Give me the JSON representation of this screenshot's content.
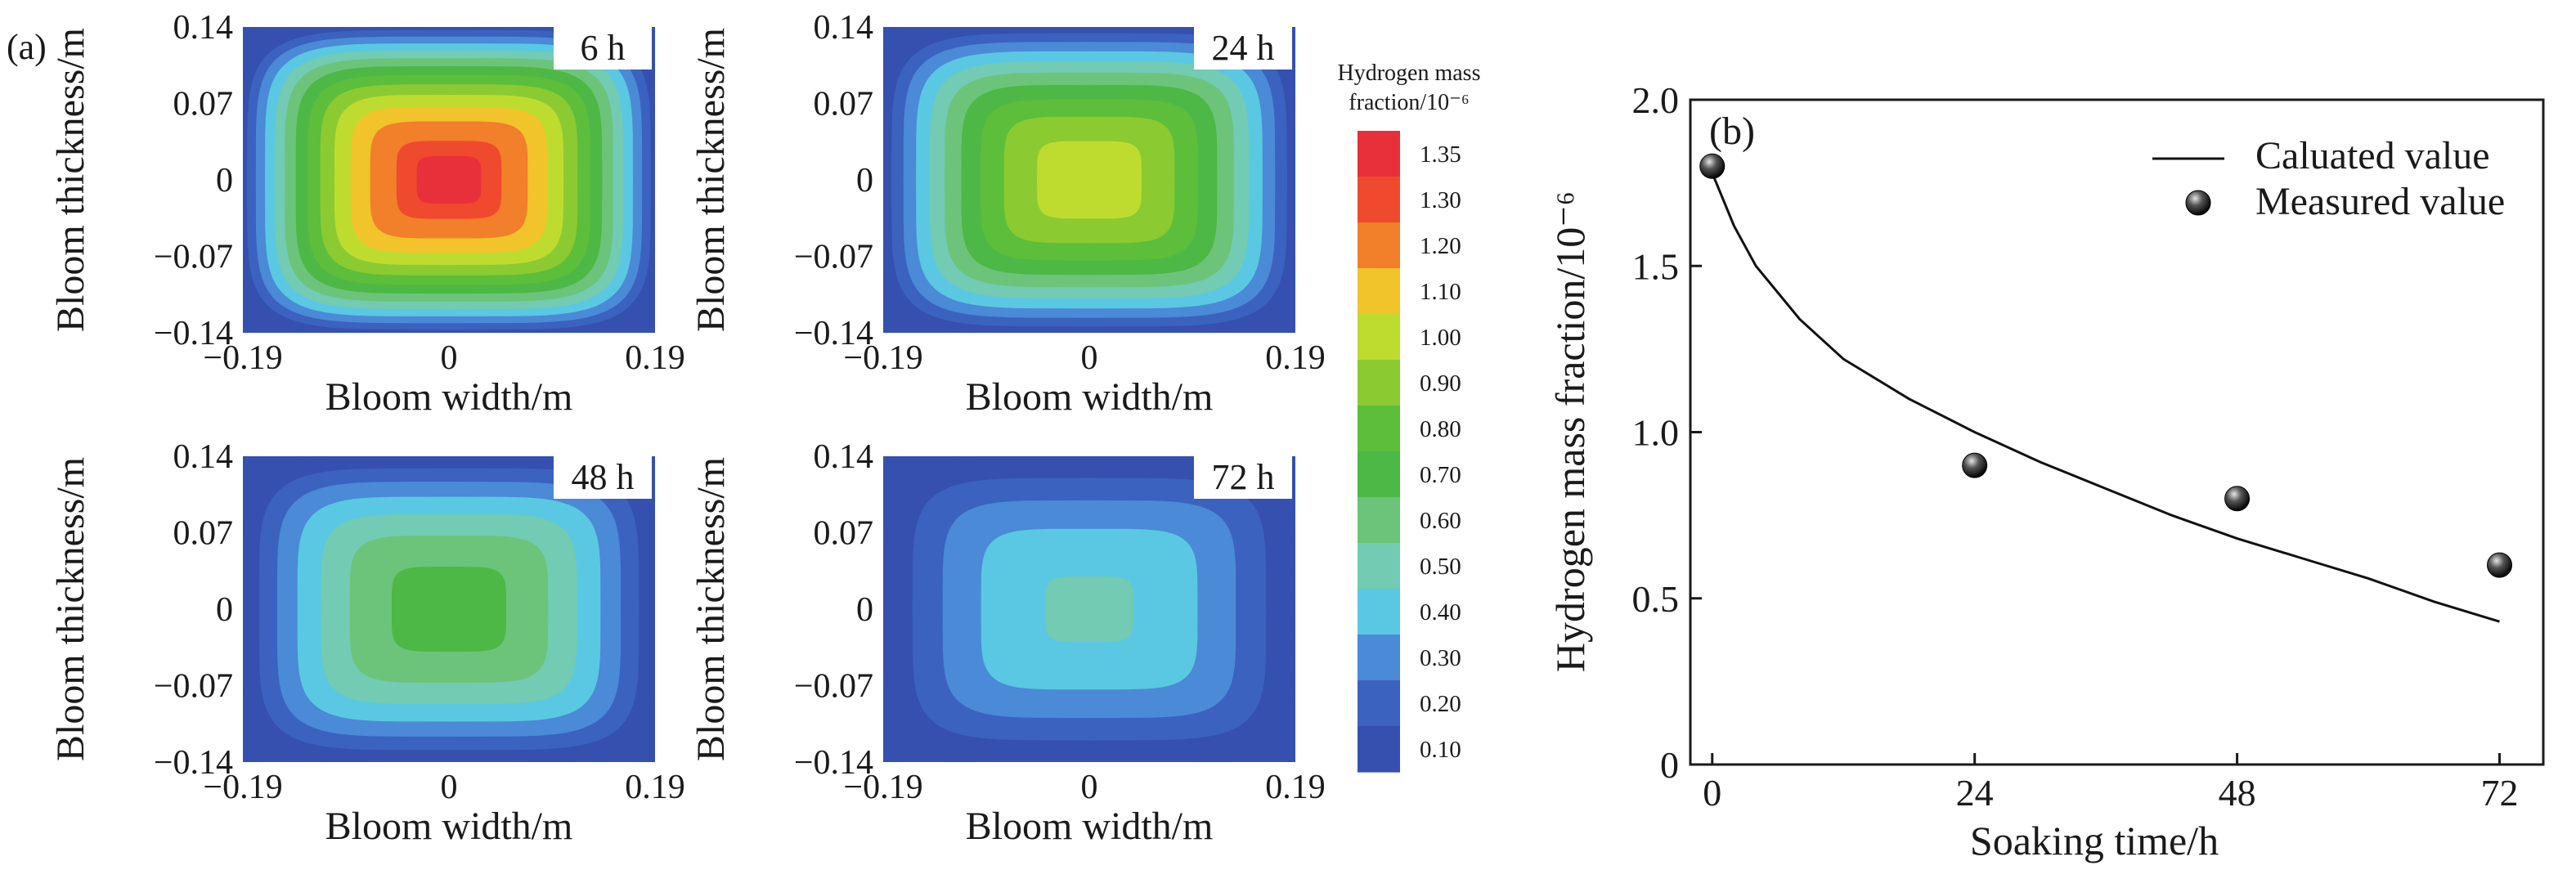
{
  "panel_a": {
    "label": "(a)",
    "maps": [
      {
        "time_label": "6 h",
        "peak": 1.38
      },
      {
        "time_label": "24 h",
        "peak": 1.06
      },
      {
        "time_label": "48 h",
        "peak": 0.75
      },
      {
        "time_label": "72 h",
        "peak": 0.52
      }
    ],
    "x_ticks": [
      "−0.19",
      "0",
      "0.19"
    ],
    "y_ticks": [
      "0.14",
      "0.07",
      "0",
      "−0.07",
      "−0.14"
    ],
    "xlabel": "Bloom width/m",
    "ylabel": "Bloom thickness/m",
    "floor_value": 0.05
  },
  "colorbar": {
    "title_line1": "Hydrogen mass",
    "title_line2": "fraction/10⁻⁶",
    "levels": [
      {
        "label": "1.35",
        "color": "#e8303a"
      },
      {
        "label": "1.30",
        "color": "#f04a2e"
      },
      {
        "label": "1.20",
        "color": "#f27f2a"
      },
      {
        "label": "1.10",
        "color": "#f0c42a"
      },
      {
        "label": "1.00",
        "color": "#bedc30"
      },
      {
        "label": "0.90",
        "color": "#8cca32"
      },
      {
        "label": "0.80",
        "color": "#5cbe3a"
      },
      {
        "label": "0.70",
        "color": "#4db846"
      },
      {
        "label": "0.60",
        "color": "#6cc47a"
      },
      {
        "label": "0.50",
        "color": "#72cbb2"
      },
      {
        "label": "0.40",
        "color": "#5ac8e2"
      },
      {
        "label": "0.30",
        "color": "#4a8ad6"
      },
      {
        "label": "0.20",
        "color": "#3a62be"
      },
      {
        "label": "0.10",
        "color": "#3550ae"
      }
    ]
  },
  "chart_data": {
    "type": "line",
    "panel_label": "(b)",
    "title": "",
    "xlabel": "Soaking time/h",
    "ylabel": "Hydrogen mass fraction/10⁻⁶",
    "xlim": [
      -2,
      76
    ],
    "ylim": [
      0,
      2.0
    ],
    "x_ticks": [
      0,
      24,
      48,
      72
    ],
    "y_ticks": [
      0,
      0.5,
      1.0,
      1.5,
      2.0
    ],
    "y_tick_labels": [
      "0",
      "0.5",
      "1.0",
      "1.5",
      "2.0"
    ],
    "legend_position": "top-right",
    "series": [
      {
        "name": "Caluated value",
        "kind": "line",
        "x": [
          0,
          2,
          4,
          8,
          12,
          18,
          24,
          30,
          36,
          42,
          48,
          54,
          60,
          66,
          72
        ],
        "y": [
          1.78,
          1.62,
          1.5,
          1.34,
          1.22,
          1.1,
          1.0,
          0.91,
          0.83,
          0.75,
          0.68,
          0.62,
          0.56,
          0.49,
          0.43
        ]
      },
      {
        "name": "Measured value",
        "kind": "scatter",
        "x": [
          0,
          24,
          48,
          72
        ],
        "y": [
          1.8,
          0.9,
          0.8,
          0.6
        ]
      }
    ]
  }
}
